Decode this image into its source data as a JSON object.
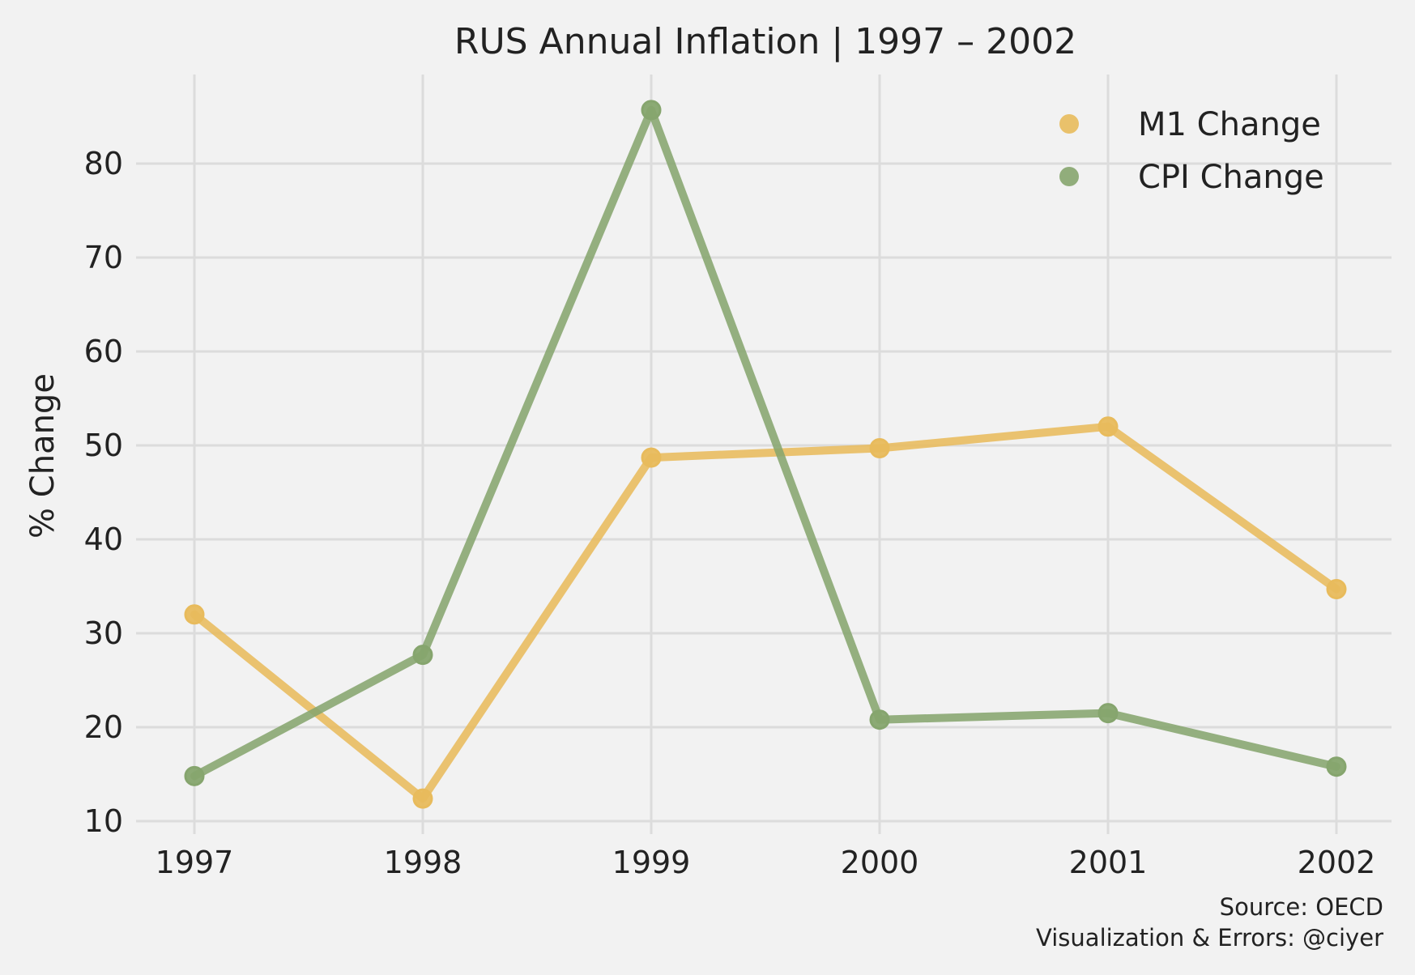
{
  "chart_data": {
    "type": "line",
    "title": "RUS Annual Inflation | 1997 – 2002",
    "xlabel": "",
    "ylabel": "% Change",
    "categories": [
      "1997",
      "1998",
      "1999",
      "2000",
      "2001",
      "2002"
    ],
    "yticks": [
      "10",
      "20",
      "30",
      "40",
      "50",
      "60",
      "70",
      "80"
    ],
    "ylim": [
      9,
      89
    ],
    "grid": true,
    "legend_position": "top-right",
    "series": [
      {
        "name": "M1 Change",
        "color": "#e8bb5c",
        "values": [
          32.0,
          12.4,
          48.7,
          49.7,
          52.0,
          34.7
        ]
      },
      {
        "name": "CPI Change",
        "color": "#86a56e",
        "values": [
          14.8,
          27.7,
          85.7,
          20.8,
          21.5,
          15.8
        ]
      }
    ]
  },
  "footer": {
    "source": "Source: OECD",
    "credit": "Visualization & Errors: @ciyer"
  }
}
